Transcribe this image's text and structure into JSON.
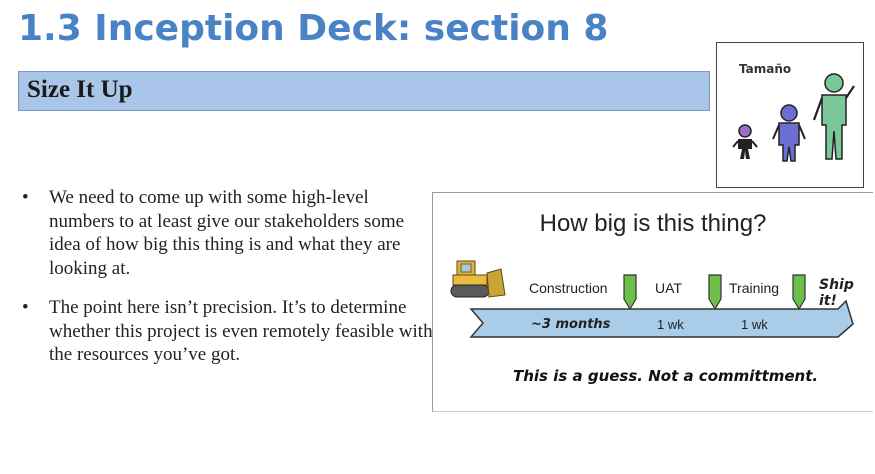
{
  "header": {
    "title": "1.3 Inception Deck: section 8",
    "subtitle": "Size It Up"
  },
  "bullets": [
    "We need to come up with some high-level numbers to at least give our  stakeholders some idea of how big this thing is and what they are looking at.",
    "The point here isn’t precision. It’s to determine whether this project is even remotely feasible with the resources you’ve got."
  ],
  "bullet_symbol": "•",
  "tamano_card": {
    "label": "Tamaño"
  },
  "diagram": {
    "title": "How big is this thing?",
    "phases": [
      {
        "label": "Construction",
        "duration": "~3 months"
      },
      {
        "label": "UAT",
        "duration": "1 wk"
      },
      {
        "label": "Training",
        "duration": "1 wk"
      }
    ],
    "ship_label": "Ship it!",
    "note": "This is a guess. Not a committment.",
    "colors": {
      "arrow_fill": "#a9cde9",
      "marker_fill": "#6cc04a"
    }
  }
}
